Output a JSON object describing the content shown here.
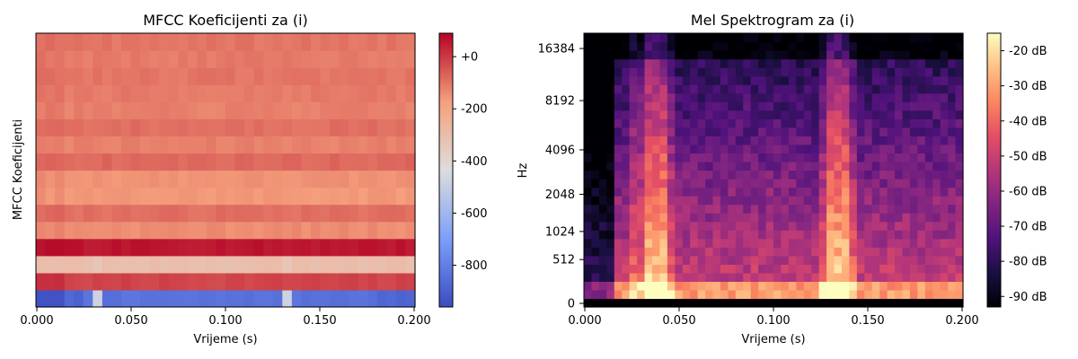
{
  "chart_data": [
    {
      "type": "heatmap",
      "title": "MFCC Koeficijenti za (i)",
      "xlabel": "Vrijeme (s)",
      "ylabel": "MFCC Koeficijenti",
      "xlim": [
        0.0,
        0.2
      ],
      "x_ticks": [
        "0.000",
        "0.050",
        "0.100",
        "0.150",
        "0.200"
      ],
      "colormap": "coolwarm",
      "colorbar": {
        "vmin": -960,
        "vmax": 90,
        "ticks": [
          {
            "value": 0,
            "label": "+0"
          },
          {
            "value": -200,
            "label": "-200"
          },
          {
            "value": -400,
            "label": "-400"
          },
          {
            "value": -600,
            "label": "-600"
          },
          {
            "value": -800,
            "label": "-800"
          }
        ]
      },
      "n_coefficients": 16,
      "time_frames": 40,
      "coefficient_levels": [
        -880,
        -20,
        -300,
        60,
        -140,
        -90,
        -160,
        -150,
        -80,
        -120,
        -90,
        -120,
        -110,
        -100,
        -110,
        -100
      ],
      "onset_highlight_frames": [
        6,
        26
      ]
    },
    {
      "type": "heatmap",
      "title": "Mel Spektrogram za (i)",
      "xlabel": "Vrijeme (s)",
      "ylabel": "Hz",
      "xlim": [
        0.0,
        0.2
      ],
      "x_ticks": [
        "0.000",
        "0.050",
        "0.100",
        "0.150",
        "0.200"
      ],
      "y_scale": "mel",
      "y_ticks": [
        "0",
        "512",
        "1024",
        "2048",
        "4096",
        "8192",
        "16384"
      ],
      "colormap": "magma",
      "colorbar": {
        "vmin": -93,
        "vmax": -15,
        "unit": "dB",
        "ticks": [
          {
            "value": -20,
            "label": "-20 dB"
          },
          {
            "value": -30,
            "label": "-30 dB"
          },
          {
            "value": -40,
            "label": "-40 dB"
          },
          {
            "value": -50,
            "label": "-50 dB"
          },
          {
            "value": -60,
            "label": "-60 dB"
          },
          {
            "value": -70,
            "label": "-70 dB"
          },
          {
            "value": -80,
            "label": "-80 dB"
          },
          {
            "value": -90,
            "label": "-90 dB"
          }
        ]
      },
      "n_mels": 32,
      "time_frames": 50,
      "silent_until_s": 0.014,
      "onset_times_s": [
        0.034,
        0.132
      ]
    }
  ]
}
